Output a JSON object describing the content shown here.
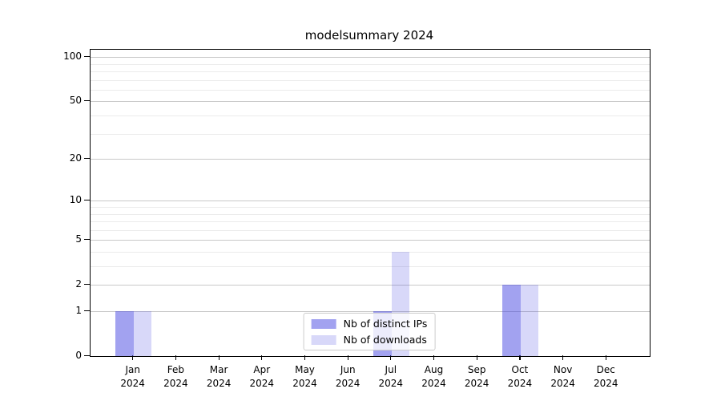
{
  "title": "modelsummary 2024",
  "chart_data": {
    "type": "bar",
    "title": "modelsummary 2024",
    "xlabel": "",
    "ylabel": "",
    "categories": [
      "Jan 2024",
      "Feb 2024",
      "Mar 2024",
      "Apr 2024",
      "May 2024",
      "Jun 2024",
      "Jul 2024",
      "Aug 2024",
      "Sep 2024",
      "Oct 2024",
      "Nov 2024",
      "Dec 2024"
    ],
    "months": [
      "Jan",
      "Feb",
      "Mar",
      "Apr",
      "May",
      "Jun",
      "Jul",
      "Aug",
      "Sep",
      "Oct",
      "Nov",
      "Dec"
    ],
    "year": "2024",
    "series": [
      {
        "key": "distinct-ips",
        "name": "Nb of distinct IPs",
        "color_base": "#3d3de0",
        "alpha": 0.48,
        "values": [
          1,
          0,
          0,
          0,
          0,
          0,
          1,
          0,
          0,
          2,
          0,
          0
        ]
      },
      {
        "key": "downloads",
        "name": "Nb of downloads",
        "color_base": "#3d3de0",
        "alpha": 0.2,
        "values": [
          1,
          0,
          0,
          0,
          0,
          0,
          4,
          0,
          0,
          2,
          0,
          0
        ]
      }
    ],
    "yscale": "log1p",
    "yticks": [
      0,
      1,
      2,
      5,
      10,
      20,
      50,
      100
    ],
    "yticks_minor": [
      3,
      4,
      6,
      7,
      8,
      9,
      30,
      40,
      60,
      70,
      80,
      90
    ],
    "ylim": [
      0,
      112
    ],
    "grid": "horizontal",
    "legend_position": "lower center",
    "colors": {
      "grid_major": "#c8c8c8",
      "grid_minor": "#ebebeb",
      "spine": "#000000",
      "background": "#ffffff"
    }
  }
}
